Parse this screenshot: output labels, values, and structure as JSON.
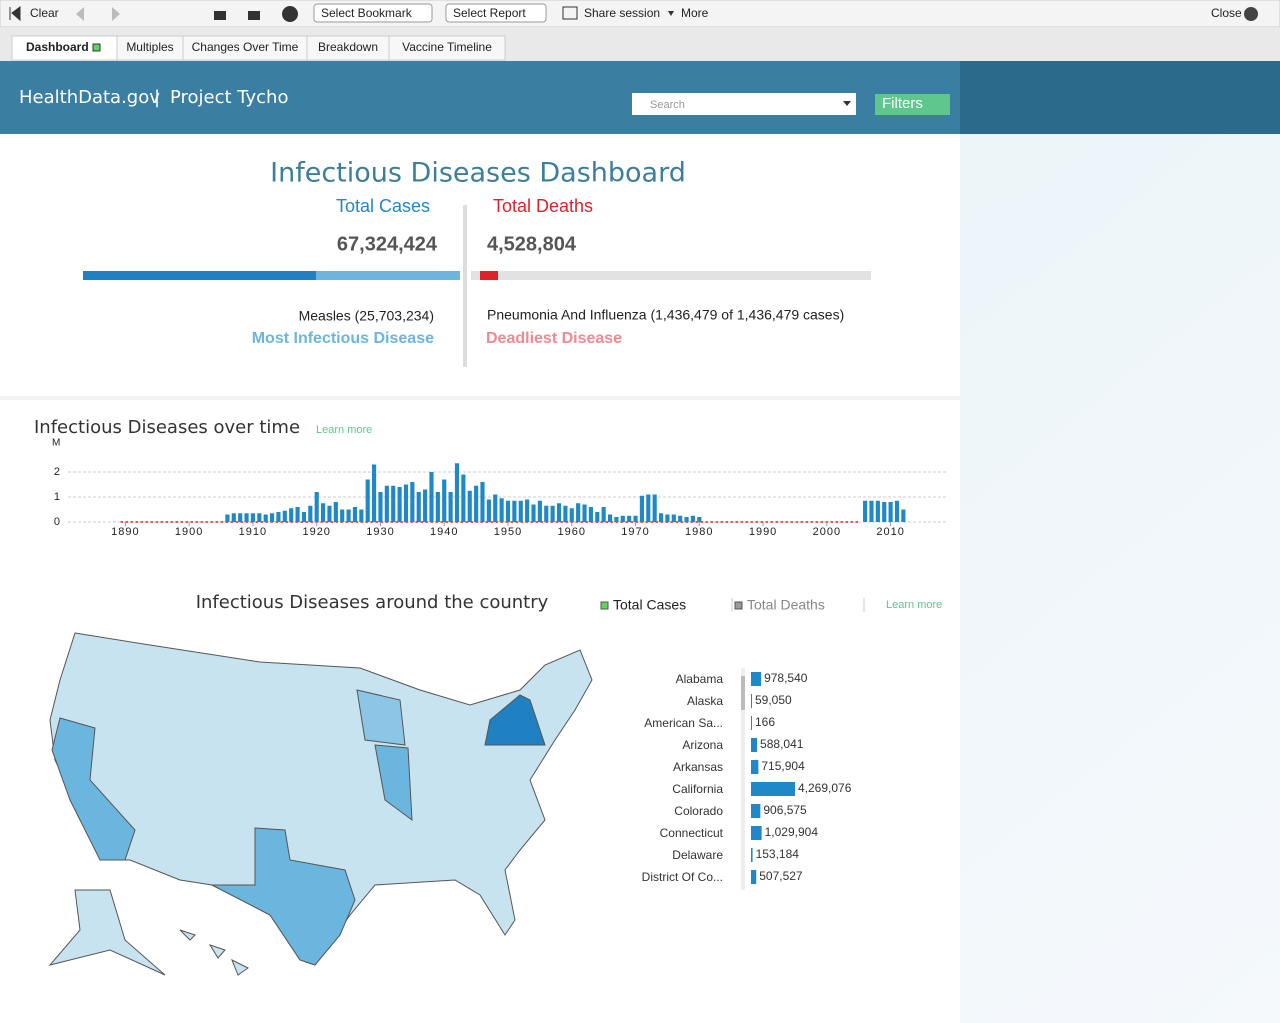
{
  "toolbar": {
    "clear": "Clear",
    "bookmark": "Select Bookmark",
    "report": "Select Report",
    "share": "Share session",
    "more": "More",
    "close": "Close"
  },
  "tabs": [
    "Dashboard",
    "Multiples",
    "Changes Over Time",
    "Breakdown",
    "Vaccine Timeline"
  ],
  "header": {
    "site": "HealthData.gov",
    "separator": "|",
    "project": "Project Tycho",
    "search": "Search",
    "filters": "Filters"
  },
  "kpi": {
    "title": "Infectious Diseases Dashboard",
    "cases_label": "Total Cases",
    "cases_value": "67,324,424",
    "deaths_label": "Total Deaths",
    "deaths_value": "4,528,804",
    "top_disease": "Measles  (25,703,234)",
    "top_caption": "Most Infectious Disease",
    "deadliest_disease": "Pneumonia And Influenza  (1,436,479 of 1,436,479 cases)",
    "deadliest_caption": "Deadliest Disease"
  },
  "map": {
    "title": "Infectious Diseases around the country",
    "legend": [
      "Total Cases",
      "Total Deaths"
    ],
    "learn_more": "Learn more"
  },
  "chart_data": [
    {
      "type": "bar",
      "title": "Infectious Diseases over time",
      "link": "Learn more",
      "y_label": "M",
      "color": "#1f88c8",
      "x": [
        1906,
        1907,
        1908,
        1909,
        1910,
        1911,
        1912,
        1913,
        1914,
        1915,
        1916,
        1917,
        1918,
        1919,
        1920,
        1921,
        1922,
        1923,
        1924,
        1925,
        1926,
        1927,
        1928,
        1929,
        1930,
        1931,
        1932,
        1933,
        1934,
        1935,
        1936,
        1937,
        1938,
        1939,
        1940,
        1941,
        1942,
        1943,
        1944,
        1945,
        1946,
        1947,
        1948,
        1949,
        1950,
        1951,
        1952,
        1953,
        1954,
        1955,
        1956,
        1957,
        1958,
        1959,
        1960,
        1961,
        1962,
        1963,
        1964,
        1965,
        1966,
        1967,
        1968,
        1969,
        1970,
        1971,
        1972,
        1973,
        1974,
        1975,
        1976,
        1977,
        1978,
        1979,
        1980,
        2006,
        2007,
        2008,
        2009,
        2010,
        2011,
        2012
      ],
      "values": [
        0.3,
        0.35,
        0.35,
        0.35,
        0.35,
        0.35,
        0.3,
        0.35,
        0.4,
        0.45,
        0.55,
        0.6,
        0.4,
        0.65,
        1.2,
        0.75,
        0.65,
        0.8,
        0.5,
        0.5,
        0.6,
        0.5,
        1.7,
        2.3,
        1.2,
        1.45,
        1.45,
        1.4,
        1.5,
        1.6,
        1.2,
        1.3,
        2.0,
        1.2,
        1.7,
        1.2,
        2.35,
        1.9,
        1.25,
        1.45,
        1.6,
        0.9,
        1.1,
        0.95,
        0.85,
        0.85,
        0.85,
        0.9,
        0.7,
        0.85,
        0.65,
        0.65,
        0.75,
        0.65,
        0.55,
        0.75,
        0.7,
        0.6,
        0.4,
        0.6,
        0.3,
        0.2,
        0.25,
        0.25,
        0.25,
        1.05,
        1.1,
        1.1,
        0.35,
        0.3,
        0.3,
        0.25,
        0.2,
        0.25,
        0.2,
        0.85,
        0.85,
        0.85,
        0.8,
        0.8,
        0.85,
        0.5
      ],
      "xlim": [
        1881,
        2019
      ],
      "xticks": [
        1890,
        1900,
        1910,
        1920,
        1930,
        1940,
        1950,
        1960,
        1970,
        1980,
        1990,
        2000,
        2010
      ],
      "ylim": [
        0,
        2.4
      ],
      "yticks": [
        0,
        1,
        2
      ],
      "grid": true
    },
    {
      "type": "hbar",
      "color": "#1f88c8",
      "categories": [
        "Alabama",
        "Alaska",
        "American Sa...",
        "Arizona",
        "Arkansas",
        "California",
        "Colorado",
        "Connecticut",
        "Delaware",
        "District Of Co..."
      ],
      "values": [
        978540,
        59050,
        166,
        588041,
        715904,
        4269076,
        906575,
        1029904,
        153184,
        507527
      ],
      "value_labels": [
        "978,540",
        "59,050",
        "166",
        "588,041",
        "715,904",
        "4,269,076",
        "906,575",
        "1,029,904",
        "153,184",
        "507,527"
      ],
      "xlim": [
        0,
        4269076
      ]
    }
  ]
}
